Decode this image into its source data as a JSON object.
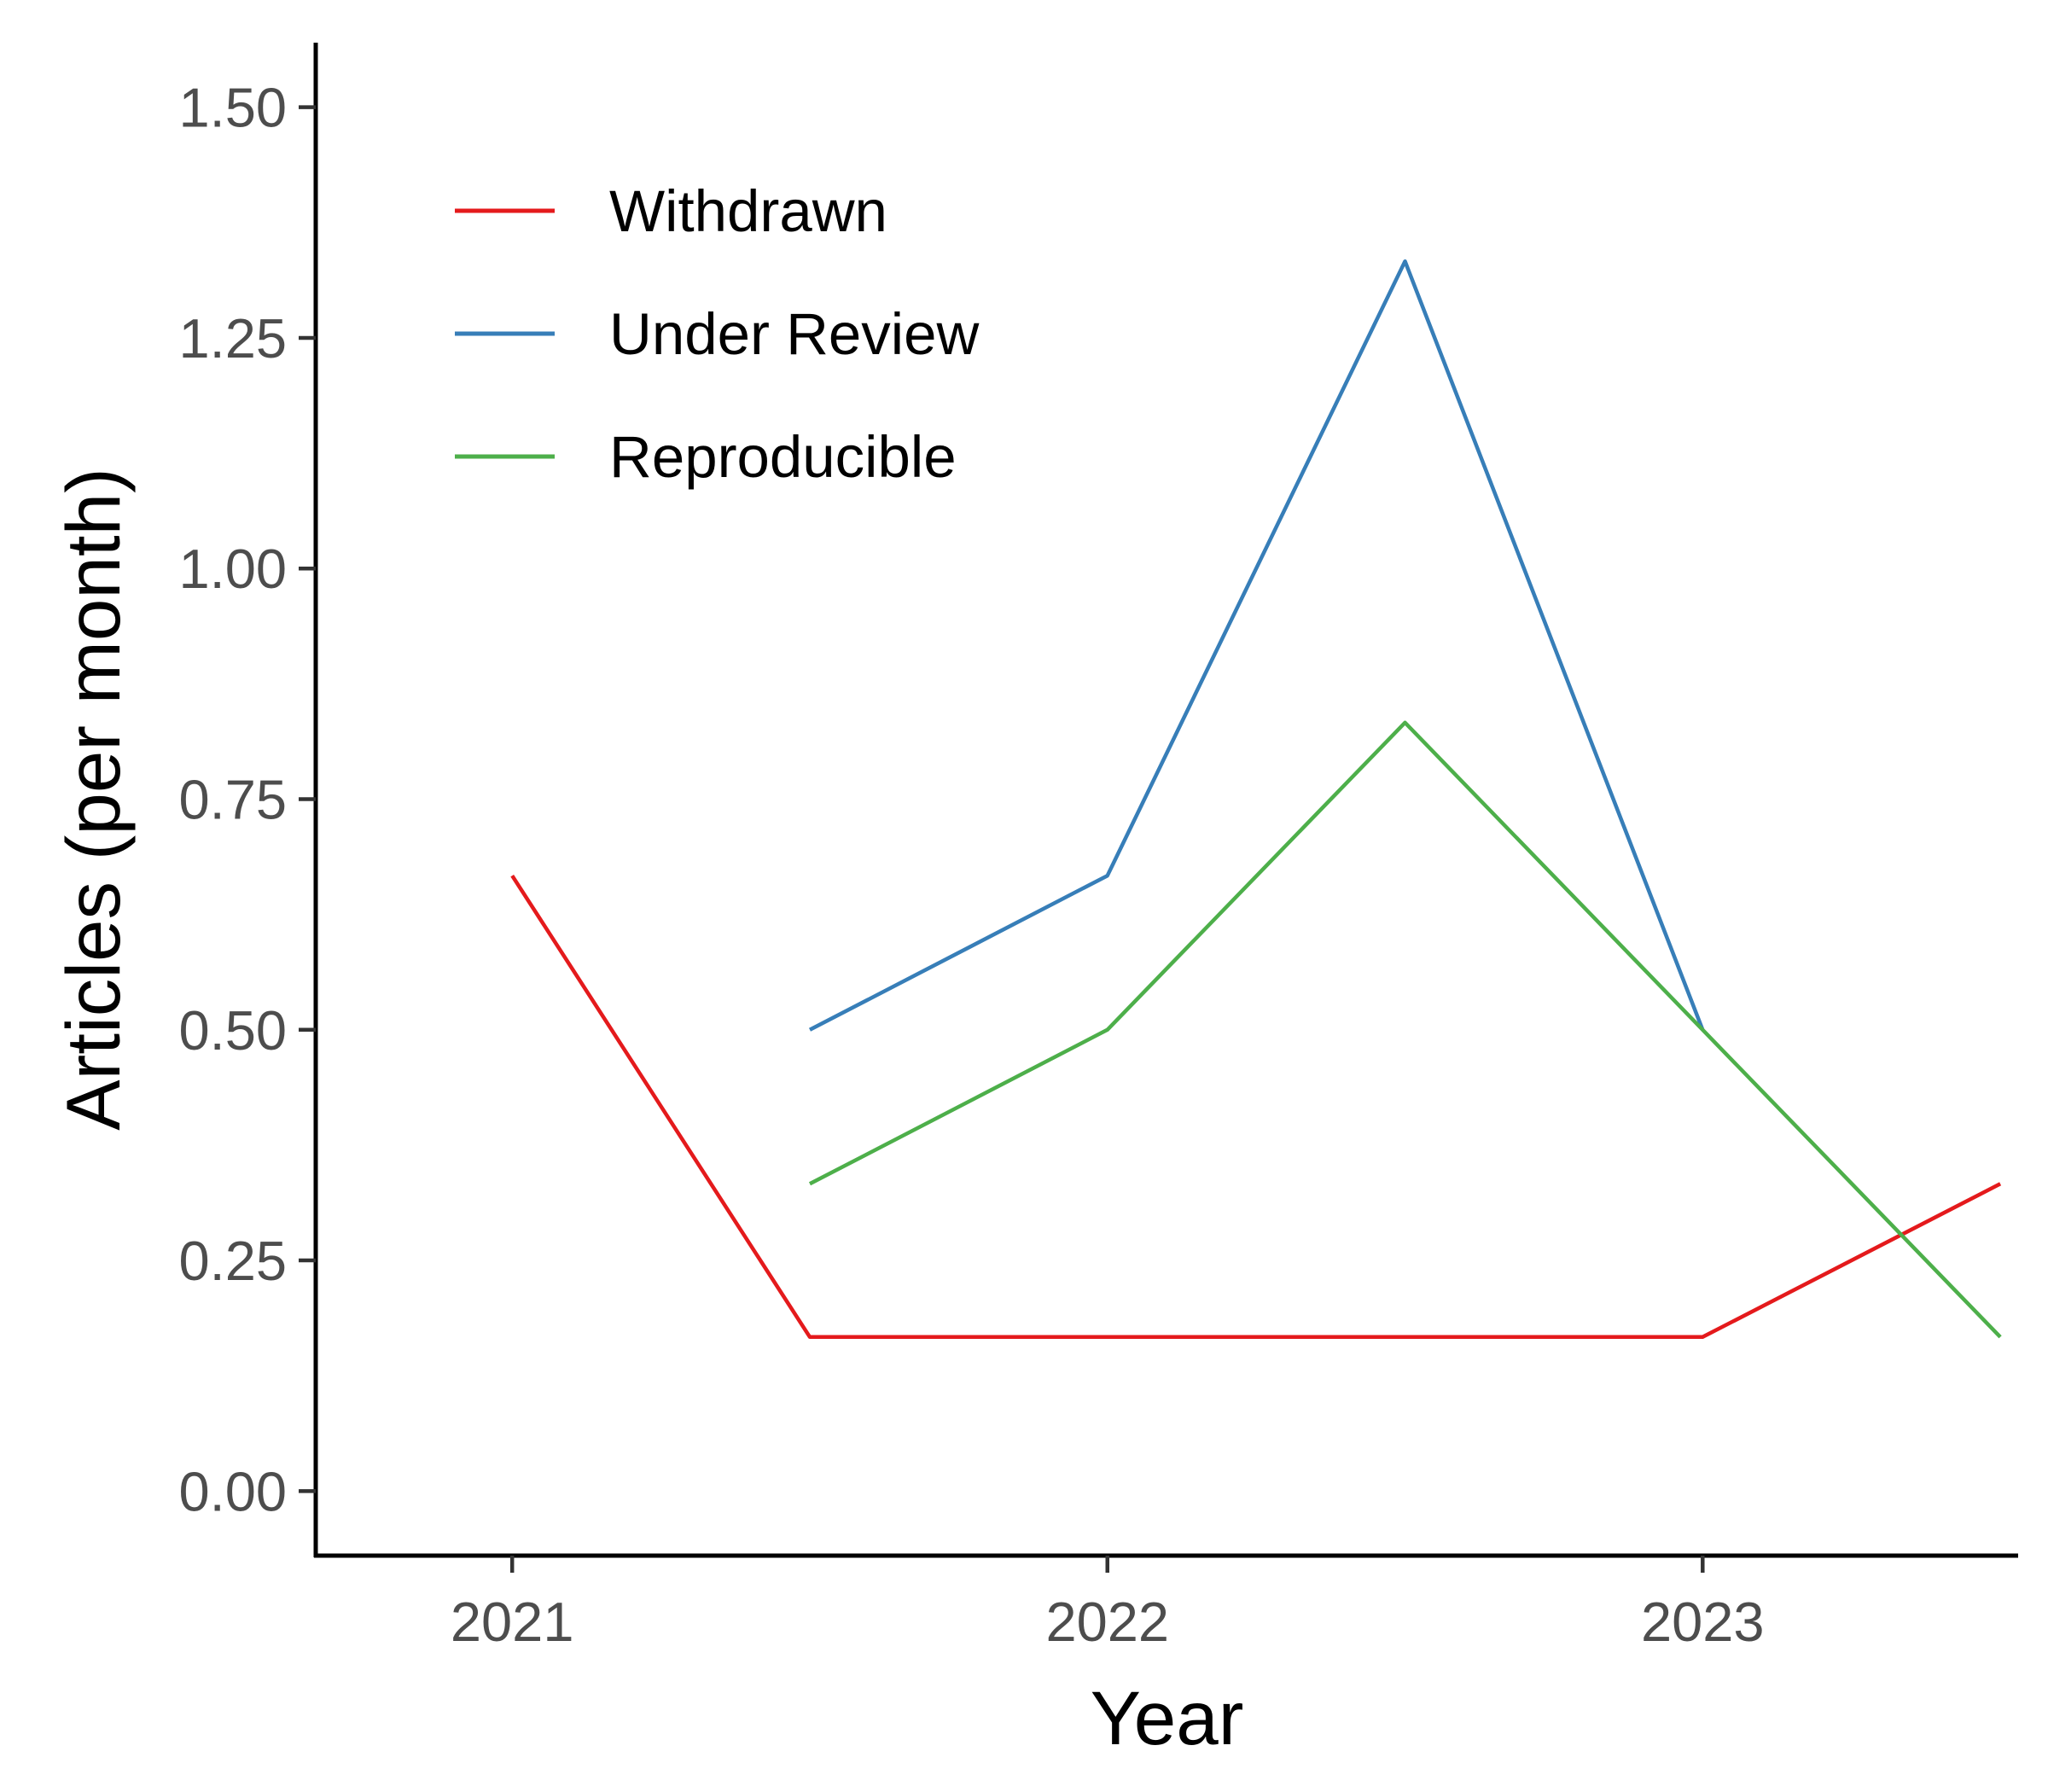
{
  "chart_data": {
    "type": "line",
    "xlabel": "Year",
    "ylabel": "Articles (per month)",
    "xlim": [
      2020.67,
      2023.53
    ],
    "ylim": [
      -0.07,
      1.57
    ],
    "x_ticks": [
      2021,
      2022,
      2023
    ],
    "x_tick_labels": [
      "2021",
      "2022",
      "2023"
    ],
    "y_ticks": [
      0,
      0.25,
      0.5,
      0.75,
      1.0,
      1.25,
      1.5
    ],
    "y_tick_labels": [
      "0.00",
      "0.25",
      "0.50",
      "0.75",
      "1.00",
      "1.25",
      "1.50"
    ],
    "grid": false,
    "legend_position": "top-left",
    "series": [
      {
        "name": "Withdrawn",
        "color": "#e41a1c",
        "x": [
          2021.0,
          2021.5,
          2022.0,
          2022.5,
          2023.0,
          2023.5
        ],
        "values": [
          0.667,
          0.167,
          0.167,
          0.167,
          0.167,
          0.333
        ]
      },
      {
        "name": "Under Review",
        "color": "#377eb8",
        "x": [
          2021.5,
          2022.0,
          2022.5,
          2023.0
        ],
        "values": [
          0.5,
          0.667,
          1.333,
          0.5
        ]
      },
      {
        "name": "Reproducible",
        "color": "#4daf4a",
        "x": [
          2021.5,
          2022.0,
          2022.5,
          2023.0,
          2023.5
        ],
        "values": [
          0.333,
          0.5,
          0.833,
          0.5,
          0.167
        ]
      }
    ]
  }
}
